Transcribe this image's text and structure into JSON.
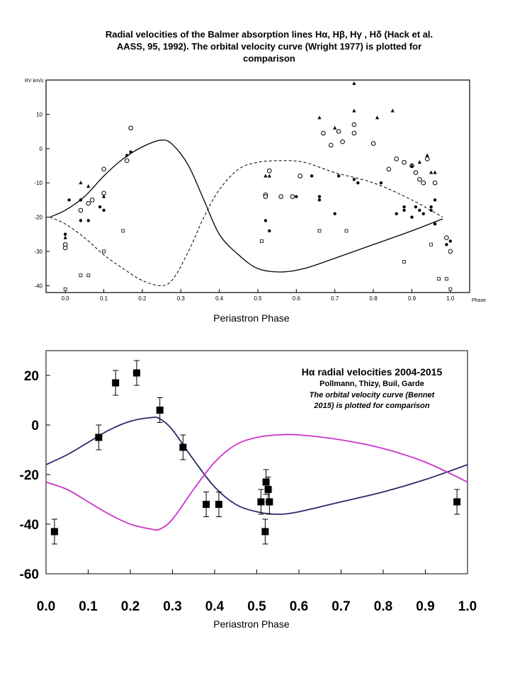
{
  "top": {
    "caption_line1": "Radial velocities of the Balmer absorption lines Hα, Hβ, Hγ , Hδ (Hack et al.",
    "caption_line2": "AASS, 95, 1992). The orbital velocity curve (Wright 1977) is plotted for",
    "caption_line3": "comparison",
    "xlabel": "Periastron Phase"
  },
  "bottom": {
    "xlabel": "Periastron Phase",
    "legend_title": "Hα radial velocities 2004-2015",
    "legend_authors": "Pollmann, Thizy, Buil, Garde",
    "legend_note1": "The orbital velocity curve (Bennet",
    "legend_note2": "2015) is plotted for comparison"
  },
  "chart_data": [
    {
      "type": "scatter",
      "ylabel": "RV km/s",
      "xlabel": "Phase",
      "xlim": [
        -0.05,
        1.05
      ],
      "ylim": [
        -42,
        20
      ],
      "xticks": [
        0.0,
        0.1,
        0.2,
        0.3,
        0.4,
        0.5,
        0.6,
        0.7,
        0.8,
        0.9,
        1.0
      ],
      "xtick_labels": [
        "0.0",
        "0.1",
        "0.2",
        "0.3",
        "0.4",
        "0.5",
        "0.6",
        "0.7",
        "0.8",
        "0.9",
        "1.0"
      ],
      "yticks": [
        10,
        0,
        -10,
        -20,
        -30,
        -40
      ],
      "ytick_labels": [
        "10",
        "0",
        "-10",
        "-20",
        "-30",
        "-40"
      ],
      "grid": false,
      "curves": [
        {
          "style": "solid",
          "x": [
            -0.04,
            0.0,
            0.05,
            0.1,
            0.15,
            0.2,
            0.25,
            0.28,
            0.32,
            0.36,
            0.4,
            0.45,
            0.5,
            0.56,
            0.62,
            0.7,
            0.8,
            0.9,
            0.98
          ],
          "y": [
            -20,
            -18,
            -14,
            -8,
            -3,
            0.5,
            2.5,
            1,
            -5,
            -15,
            -25,
            -31,
            -35,
            -36,
            -35,
            -32,
            -28,
            -24,
            -20.5
          ]
        },
        {
          "style": "dashed",
          "x": [
            -0.04,
            0.0,
            0.05,
            0.1,
            0.15,
            0.2,
            0.25,
            0.28,
            0.32,
            0.36,
            0.4,
            0.45,
            0.5,
            0.56,
            0.62,
            0.7,
            0.8,
            0.9,
            0.98
          ],
          "y": [
            -20,
            -22,
            -26,
            -31,
            -35,
            -38.5,
            -40,
            -38,
            -30,
            -20,
            -12,
            -6,
            -4,
            -3.5,
            -4,
            -7,
            -10,
            -15,
            -20
          ]
        }
      ],
      "series": [
        {
          "marker": "filled-circle",
          "x": [
            0.0,
            0.01,
            0.04,
            0.04,
            0.06,
            0.07,
            0.09,
            0.1,
            0.16,
            0.17,
            0.52,
            0.53,
            0.6,
            0.64,
            0.66,
            0.66,
            0.7,
            0.71,
            0.75,
            0.76,
            0.82,
            0.86,
            0.88,
            0.88,
            0.9,
            0.91,
            0.92,
            0.93,
            0.95,
            0.95,
            0.96,
            0.96,
            0.99,
            1.0
          ],
          "y": [
            -25,
            -15,
            -21,
            -15,
            -21,
            -15,
            -17,
            -18,
            -2,
            -1,
            -21,
            -24,
            -14,
            -8,
            -15,
            -14,
            -19,
            -8,
            -9,
            -10,
            -10,
            -19,
            -18,
            -17,
            -20,
            -17,
            -18,
            -19,
            -17,
            -18,
            -15,
            -22,
            -28,
            -27
          ]
        },
        {
          "marker": "open-circle",
          "x": [
            0.0,
            0.0,
            0.04,
            0.06,
            0.07,
            0.1,
            0.1,
            0.16,
            0.17,
            0.52,
            0.52,
            0.53,
            0.56,
            0.59,
            0.61,
            0.67,
            0.69,
            0.71,
            0.72,
            0.75,
            0.75,
            0.8,
            0.84,
            0.86,
            0.88,
            0.9,
            0.91,
            0.92,
            0.93,
            0.94,
            0.96,
            0.99,
            1.0
          ],
          "y": [
            -28,
            -29,
            -18,
            -16,
            -15,
            -6,
            -13,
            -3.5,
            6,
            -13.5,
            -14,
            -6.5,
            -14,
            -14,
            -8,
            4.5,
            1,
            5,
            2,
            7,
            4.5,
            1.5,
            -6,
            -3,
            -4,
            -5,
            -7,
            -9,
            -10,
            -3,
            -10,
            -26,
            -30
          ]
        },
        {
          "marker": "filled-triangle",
          "x": [
            0.0,
            0.04,
            0.06,
            0.1,
            0.52,
            0.53,
            0.66,
            0.7,
            0.75,
            0.75,
            0.81,
            0.85,
            0.9,
            0.92,
            0.94,
            0.95,
            0.96
          ],
          "y": [
            -26,
            -10,
            -11,
            -14,
            -8,
            -8,
            9,
            6,
            19,
            11,
            9,
            11,
            -5,
            -4,
            -2,
            -7,
            -7
          ]
        },
        {
          "marker": "open-square",
          "x": [
            0.0,
            0.04,
            0.06,
            0.1,
            0.15,
            0.51,
            0.66,
            0.73,
            0.88,
            0.95,
            0.97,
            0.99,
            1.0
          ],
          "y": [
            -41,
            -37,
            -37,
            -30,
            -24,
            -27,
            -24,
            -24,
            -33,
            -28,
            -38,
            -38,
            -41
          ]
        }
      ]
    },
    {
      "type": "scatter",
      "title": "Hα radial velocities 2004-2015",
      "xlabel": "Periastron Phase",
      "xlim": [
        0.0,
        1.0
      ],
      "ylim": [
        -60,
        30
      ],
      "xticks": [
        0.0,
        0.1,
        0.2,
        0.3,
        0.4,
        0.5,
        0.6,
        0.7,
        0.8,
        0.9,
        1.0
      ],
      "xtick_labels": [
        "0.0",
        "0.1",
        "0.2",
        "0.3",
        "0.4",
        "0.5",
        "0.6",
        "0.7",
        "0.8",
        "0.9",
        "1.0"
      ],
      "yticks": [
        20,
        0,
        -20,
        -40,
        -60
      ],
      "ytick_labels": [
        "20",
        "0",
        "-20",
        "-40",
        "-60"
      ],
      "grid": false,
      "colors": {
        "orbit": "#2a2a6a",
        "counter": "#cc33cc"
      },
      "curves": [
        {
          "color": "#2a2a6a",
          "x": [
            0.0,
            0.05,
            0.1,
            0.15,
            0.2,
            0.25,
            0.27,
            0.3,
            0.35,
            0.4,
            0.45,
            0.5,
            0.55,
            0.6,
            0.7,
            0.8,
            0.9,
            1.0
          ],
          "y": [
            -16,
            -12,
            -7,
            -2,
            1.5,
            3,
            2.5,
            -2,
            -14,
            -25,
            -32,
            -35,
            -36,
            -35,
            -31,
            -27,
            -22,
            -16
          ]
        },
        {
          "color": "#cc33cc",
          "x": [
            0.0,
            0.05,
            0.1,
            0.15,
            0.2,
            0.25,
            0.27,
            0.3,
            0.35,
            0.4,
            0.45,
            0.5,
            0.55,
            0.6,
            0.7,
            0.8,
            0.9,
            1.0
          ],
          "y": [
            -23,
            -26,
            -31,
            -36,
            -40,
            -42,
            -42,
            -38,
            -26,
            -15,
            -8,
            -5,
            -4,
            -4,
            -6,
            -9.5,
            -15,
            -23
          ]
        }
      ],
      "points": [
        {
          "x": 0.02,
          "y": -43,
          "err": 5
        },
        {
          "x": 0.125,
          "y": -5,
          "err": 5
        },
        {
          "x": 0.165,
          "y": 17,
          "err": 5
        },
        {
          "x": 0.215,
          "y": 21,
          "err": 5
        },
        {
          "x": 0.27,
          "y": 6,
          "err": 5
        },
        {
          "x": 0.325,
          "y": -9,
          "err": 5
        },
        {
          "x": 0.38,
          "y": -32,
          "err": 5
        },
        {
          "x": 0.41,
          "y": -32,
          "err": 5
        },
        {
          "x": 0.51,
          "y": -31,
          "err": 5
        },
        {
          "x": 0.52,
          "y": -43,
          "err": 5
        },
        {
          "x": 0.522,
          "y": -23,
          "err": 5
        },
        {
          "x": 0.527,
          "y": -26,
          "err": 5
        },
        {
          "x": 0.53,
          "y": -31,
          "err": 5
        },
        {
          "x": 0.975,
          "y": -31,
          "err": 5
        }
      ]
    }
  ]
}
